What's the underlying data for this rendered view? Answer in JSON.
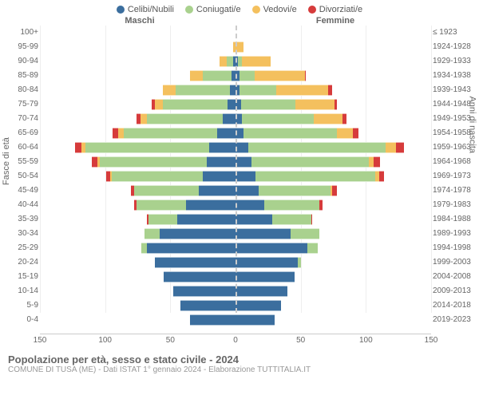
{
  "legend": {
    "celibi": "Celibi/Nubili",
    "coniugati": "Coniugati/e",
    "vedovi": "Vedovi/e",
    "divorziati": "Divorziati/e"
  },
  "colors": {
    "celibi": "#3b6e9e",
    "coniugati": "#a9d18e",
    "vedovi": "#f4c05e",
    "divorziati": "#d63b3b",
    "bg": "#ffffff",
    "grid": "#eeeeee",
    "axis_text": "#666666"
  },
  "axis": {
    "left_title": "Maschi",
    "right_title": "Femmine",
    "left_y_label": "Fasce di età",
    "right_y_label": "Anni di nascita",
    "x_max": 150,
    "x_ticks": [
      150,
      100,
      50,
      0,
      50,
      100,
      150
    ],
    "fontsize_tick": 10,
    "fontsize_label": 11
  },
  "footer": {
    "title": "Popolazione per età, sesso e stato civile - 2024",
    "sub": "COMUNE DI TUSA (ME) - Dati ISTAT 1° gennaio 2024 - Elaborazione TUTTITALIA.IT"
  },
  "rows": [
    {
      "age": "100+",
      "year": "≤ 1923",
      "m": {
        "c": 0,
        "cg": 0,
        "v": 0,
        "d": 0
      },
      "f": {
        "c": 0,
        "cg": 0,
        "v": 0,
        "d": 0
      }
    },
    {
      "age": "95-99",
      "year": "1924-1928",
      "m": {
        "c": 0,
        "cg": 0,
        "v": 2,
        "d": 0
      },
      "f": {
        "c": 0,
        "cg": 0,
        "v": 6,
        "d": 0
      }
    },
    {
      "age": "90-94",
      "year": "1929-1933",
      "m": {
        "c": 2,
        "cg": 5,
        "v": 5,
        "d": 0
      },
      "f": {
        "c": 2,
        "cg": 3,
        "v": 22,
        "d": 0
      }
    },
    {
      "age": "85-89",
      "year": "1934-1938",
      "m": {
        "c": 3,
        "cg": 22,
        "v": 10,
        "d": 0
      },
      "f": {
        "c": 3,
        "cg": 12,
        "v": 38,
        "d": 1
      }
    },
    {
      "age": "80-84",
      "year": "1939-1943",
      "m": {
        "c": 4,
        "cg": 42,
        "v": 10,
        "d": 0
      },
      "f": {
        "c": 3,
        "cg": 28,
        "v": 40,
        "d": 3
      }
    },
    {
      "age": "75-79",
      "year": "1944-1948",
      "m": {
        "c": 6,
        "cg": 50,
        "v": 6,
        "d": 2
      },
      "f": {
        "c": 4,
        "cg": 42,
        "v": 30,
        "d": 2
      }
    },
    {
      "age": "70-74",
      "year": "1949-1953",
      "m": {
        "c": 10,
        "cg": 58,
        "v": 5,
        "d": 3
      },
      "f": {
        "c": 5,
        "cg": 55,
        "v": 22,
        "d": 3
      }
    },
    {
      "age": "65-69",
      "year": "1954-1958",
      "m": {
        "c": 14,
        "cg": 72,
        "v": 4,
        "d": 4
      },
      "f": {
        "c": 6,
        "cg": 72,
        "v": 12,
        "d": 4
      }
    },
    {
      "age": "60-64",
      "year": "1959-1963",
      "m": {
        "c": 20,
        "cg": 95,
        "v": 3,
        "d": 5
      },
      "f": {
        "c": 10,
        "cg": 105,
        "v": 8,
        "d": 6
      }
    },
    {
      "age": "55-59",
      "year": "1964-1968",
      "m": {
        "c": 22,
        "cg": 82,
        "v": 2,
        "d": 4
      },
      "f": {
        "c": 12,
        "cg": 90,
        "v": 4,
        "d": 5
      }
    },
    {
      "age": "50-54",
      "year": "1969-1973",
      "m": {
        "c": 25,
        "cg": 70,
        "v": 1,
        "d": 3
      },
      "f": {
        "c": 15,
        "cg": 92,
        "v": 3,
        "d": 4
      }
    },
    {
      "age": "45-49",
      "year": "1974-1978",
      "m": {
        "c": 28,
        "cg": 50,
        "v": 0,
        "d": 2
      },
      "f": {
        "c": 18,
        "cg": 55,
        "v": 1,
        "d": 4
      }
    },
    {
      "age": "40-44",
      "year": "1979-1983",
      "m": {
        "c": 38,
        "cg": 38,
        "v": 0,
        "d": 2
      },
      "f": {
        "c": 22,
        "cg": 42,
        "v": 0,
        "d": 3
      }
    },
    {
      "age": "35-39",
      "year": "1984-1988",
      "m": {
        "c": 45,
        "cg": 22,
        "v": 0,
        "d": 1
      },
      "f": {
        "c": 28,
        "cg": 30,
        "v": 0,
        "d": 1
      }
    },
    {
      "age": "30-34",
      "year": "1989-1993",
      "m": {
        "c": 58,
        "cg": 12,
        "v": 0,
        "d": 0
      },
      "f": {
        "c": 42,
        "cg": 22,
        "v": 0,
        "d": 0
      }
    },
    {
      "age": "25-29",
      "year": "1994-1998",
      "m": {
        "c": 68,
        "cg": 4,
        "v": 0,
        "d": 0
      },
      "f": {
        "c": 55,
        "cg": 8,
        "v": 0,
        "d": 0
      }
    },
    {
      "age": "20-24",
      "year": "1999-2003",
      "m": {
        "c": 62,
        "cg": 0,
        "v": 0,
        "d": 0
      },
      "f": {
        "c": 48,
        "cg": 2,
        "v": 0,
        "d": 0
      }
    },
    {
      "age": "15-19",
      "year": "2004-2008",
      "m": {
        "c": 55,
        "cg": 0,
        "v": 0,
        "d": 0
      },
      "f": {
        "c": 45,
        "cg": 0,
        "v": 0,
        "d": 0
      }
    },
    {
      "age": "10-14",
      "year": "2009-2013",
      "m": {
        "c": 48,
        "cg": 0,
        "v": 0,
        "d": 0
      },
      "f": {
        "c": 40,
        "cg": 0,
        "v": 0,
        "d": 0
      }
    },
    {
      "age": "5-9",
      "year": "2014-2018",
      "m": {
        "c": 42,
        "cg": 0,
        "v": 0,
        "d": 0
      },
      "f": {
        "c": 35,
        "cg": 0,
        "v": 0,
        "d": 0
      }
    },
    {
      "age": "0-4",
      "year": "2019-2023",
      "m": {
        "c": 35,
        "cg": 0,
        "v": 0,
        "d": 0
      },
      "f": {
        "c": 30,
        "cg": 0,
        "v": 0,
        "d": 0
      }
    }
  ]
}
